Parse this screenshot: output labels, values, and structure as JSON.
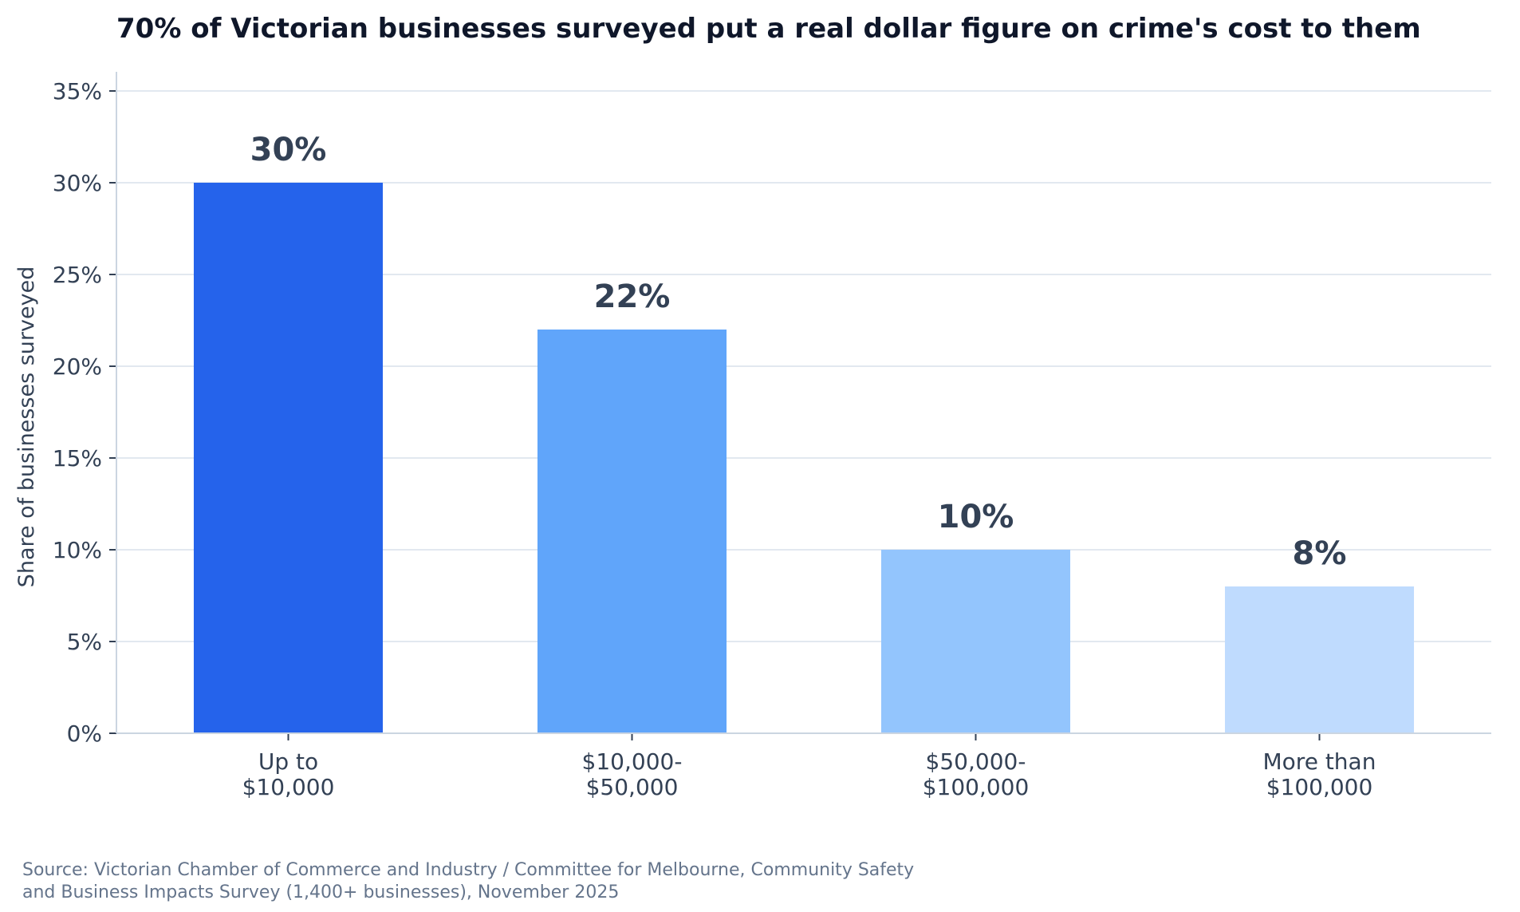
{
  "chart_data": {
    "type": "bar",
    "title": "70% of Victorian businesses surveyed put a real dollar figure on crime's cost to them",
    "ylabel": "Share of businesses surveyed",
    "xlabel": "",
    "categories": [
      [
        "Up to",
        "$10,000"
      ],
      [
        "$10,000-",
        "$50,000"
      ],
      [
        "$50,000-",
        "$100,000"
      ],
      [
        "More than",
        "$100,000"
      ]
    ],
    "values": [
      30,
      22,
      10,
      8
    ],
    "value_labels": [
      "30%",
      "22%",
      "10%",
      "8%"
    ],
    "colors": [
      "#2563eb",
      "#60a5fa",
      "#93c5fd",
      "#bfdbfe"
    ],
    "ylim": [
      0,
      35
    ],
    "yticks": [
      0,
      5,
      10,
      15,
      20,
      25,
      30,
      35
    ],
    "ytick_labels": [
      "0%",
      "5%",
      "10%",
      "15%",
      "20%",
      "25%",
      "30%",
      "35%"
    ],
    "grid": true,
    "legend": "none"
  },
  "source_lines": [
    "Source: Victorian Chamber of Commerce and Industry / Committee for Melbourne, Community Safety",
    "and Business Impacts Survey (1,400+ businesses), November 2025"
  ]
}
